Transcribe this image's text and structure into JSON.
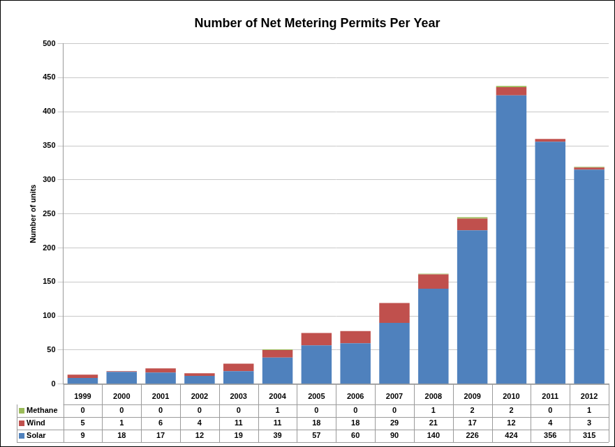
{
  "chart_data": {
    "type": "bar",
    "title": "Number of Net Metering Permits Per Year",
    "y_label": "Number of units",
    "categories": [
      "1999",
      "2000",
      "2001",
      "2002",
      "2003",
      "2004",
      "2005",
      "2006",
      "2007",
      "2008",
      "2009",
      "2010",
      "2011",
      "2012"
    ],
    "series": [
      {
        "name": "Methane",
        "color": "#9bbb59",
        "values": [
          0,
          0,
          0,
          0,
          0,
          1,
          0,
          0,
          0,
          1,
          2,
          2,
          0,
          1
        ]
      },
      {
        "name": "Wind",
        "color": "#c0504d",
        "values": [
          5,
          1,
          6,
          4,
          11,
          11,
          18,
          18,
          29,
          21,
          17,
          12,
          4,
          3
        ]
      },
      {
        "name": "Solar",
        "color": "#4f81bd",
        "values": [
          9,
          18,
          17,
          12,
          19,
          39,
          57,
          60,
          90,
          140,
          226,
          424,
          356,
          315
        ]
      }
    ],
    "stacked": true,
    "ylim": [
      0,
      500
    ],
    "yticks": [
      0,
      50,
      100,
      150,
      200,
      250,
      300,
      350,
      400,
      450,
      500
    ],
    "grid": true,
    "legend": "bottom"
  }
}
